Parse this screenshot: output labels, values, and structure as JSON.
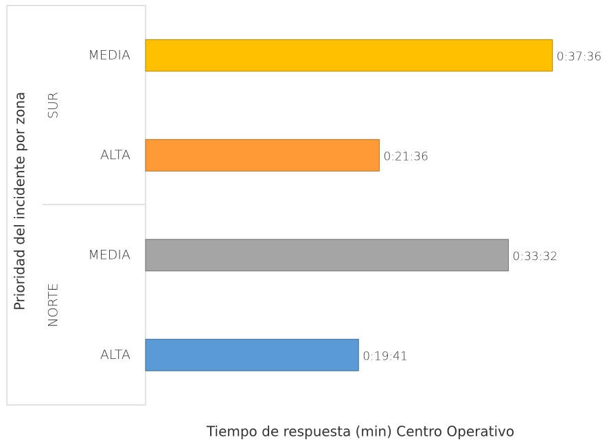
{
  "chart_data": {
    "type": "bar",
    "orientation": "horizontal",
    "y_label": "Prioridad del incidente por zona",
    "x_label": "Tiempo de respuesta (min) Centro Operativo",
    "groups": [
      {
        "name": "SUR",
        "categories": [
          "MEDIA",
          "ALTA"
        ],
        "values": [
          37.6,
          21.6
        ],
        "value_labels": [
          "0:37:36",
          "0:21:36"
        ],
        "colors": [
          "#FFC000",
          "#FF9A36"
        ]
      },
      {
        "name": "NORTE",
        "categories": [
          "MEDIA",
          "ALTA"
        ],
        "values": [
          33.5333,
          19.6833
        ],
        "value_labels": [
          "0:33:32",
          "0:19:41"
        ],
        "colors": [
          "#A5A5A5",
          "#5B9BD5"
        ]
      }
    ],
    "xlim": [
      0,
      42
    ]
  }
}
